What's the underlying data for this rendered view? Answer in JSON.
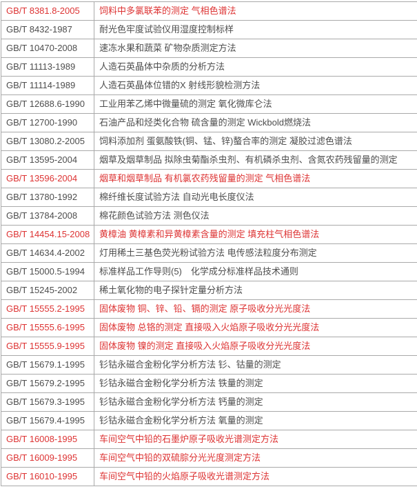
{
  "colors": {
    "red_text": "#dd3333",
    "default_text": "#4d4d4d",
    "border_color": "#a9a9a9",
    "row_bg": "#ffffff"
  },
  "table": {
    "columns": [
      "standard_code",
      "standard_title"
    ],
    "rows": [
      {
        "code": "GB/T 8381.8-2005",
        "title": "饲料中多氯联苯的测定 气相色谱法",
        "color": "red"
      },
      {
        "code": "GB/T 8432-1987",
        "title": "耐光色牢度试验仪用湿度控制标样",
        "color": "default"
      },
      {
        "code": "GB/T 10470-2008",
        "title": "速冻水果和蔬菜 矿物杂质测定方法",
        "color": "default"
      },
      {
        "code": "GB/T 11113-1989",
        "title": "人造石英晶体中杂质的分析方法",
        "color": "default"
      },
      {
        "code": "GB/T 11114-1989",
        "title": "人造石英晶体位错的X 射线形貌检测方法",
        "color": "default"
      },
      {
        "code": "GB/T 12688.6-1990",
        "title": "工业用苯乙烯中微量硫的测定 氧化微库仑法",
        "color": "default"
      },
      {
        "code": "GB/T 12700-1990",
        "title": "石油产品和烃类化合物 硫含量的测定 Wickbold燃烧法",
        "color": "default"
      },
      {
        "code": "GB/T 13080.2-2005",
        "title": "饲料添加剂 蛋氨酸铁(铜、锰、锌)螯合率的测定 凝胶过滤色谱法",
        "color": "default"
      },
      {
        "code": "GB/T 13595-2004",
        "title": "烟草及烟草制品 拟除虫菊酯杀虫剂、有机磷杀虫剂、含氮农药残留量的测定",
        "color": "default"
      },
      {
        "code": "GB/T 13596-2004",
        "title": "烟草和烟草制品 有机氯农药残留量的测定 气相色谱法",
        "color": "red"
      },
      {
        "code": "GB/T 13780-1992",
        "title": "棉纤维长度试验方法 自动光电长度仪法",
        "color": "default"
      },
      {
        "code": "GB/T 13784-2008",
        "title": "棉花颜色试验方法 测色仪法",
        "color": "default"
      },
      {
        "code": "GB/T 14454.15-2008",
        "title": "黄樟油 黄樟素和异黄樟素含量的测定 填充柱气相色谱法",
        "color": "red"
      },
      {
        "code": "GB/T 14634.4-2002",
        "title": "灯用稀土三基色荧光粉试验方法 电传感法粒度分布测定",
        "color": "default"
      },
      {
        "code": "GB/T 15000.5-1994",
        "title": "标准样品工作导则(5)　化学成分标准样品技术通则",
        "color": "default"
      },
      {
        "code": "GB/T 15245-2002",
        "title": "稀土氧化物的电子探针定量分析方法",
        "color": "default"
      },
      {
        "code": "GB/T 15555.2-1995",
        "title": "固体废物 铜、锌、铅、镉的测定 原子吸收分光光度法",
        "color": "red"
      },
      {
        "code": "GB/T 15555.6-1995",
        "title": "固体废物 总铬的测定 直接吸入火焰原子吸收分光光度法",
        "color": "red"
      },
      {
        "code": "GB/T 15555.9-1995",
        "title": "固体废物 镍的测定 直接吸入火焰原子吸收分光光度法",
        "color": "red"
      },
      {
        "code": "GB/T 15679.1-1995",
        "title": "钐钴永磁合金粉化学分析方法 钐、钴量的测定",
        "color": "default"
      },
      {
        "code": "GB/T 15679.2-1995",
        "title": "钐钴永磁合金粉化学分析方法 铁量的测定",
        "color": "default"
      },
      {
        "code": "GB/T 15679.3-1995",
        "title": "钐钴永磁合金粉化学分析方法 钙量的测定",
        "color": "default"
      },
      {
        "code": "GB/T 15679.4-1995",
        "title": "钐钴永磁合金粉化学分析方法 氧量的测定",
        "color": "default"
      },
      {
        "code": "GB/T 16008-1995",
        "title": "车间空气中铅的石墨炉原子吸收光谱测定方法",
        "color": "red"
      },
      {
        "code": "GB/T 16009-1995",
        "title": "车间空气中铅的双硫腙分光光度测定方法",
        "color": "red"
      },
      {
        "code": "GB/T 16010-1995",
        "title": "车间空气中铅的火焰原子吸收光谱测定方法",
        "color": "red"
      }
    ]
  }
}
